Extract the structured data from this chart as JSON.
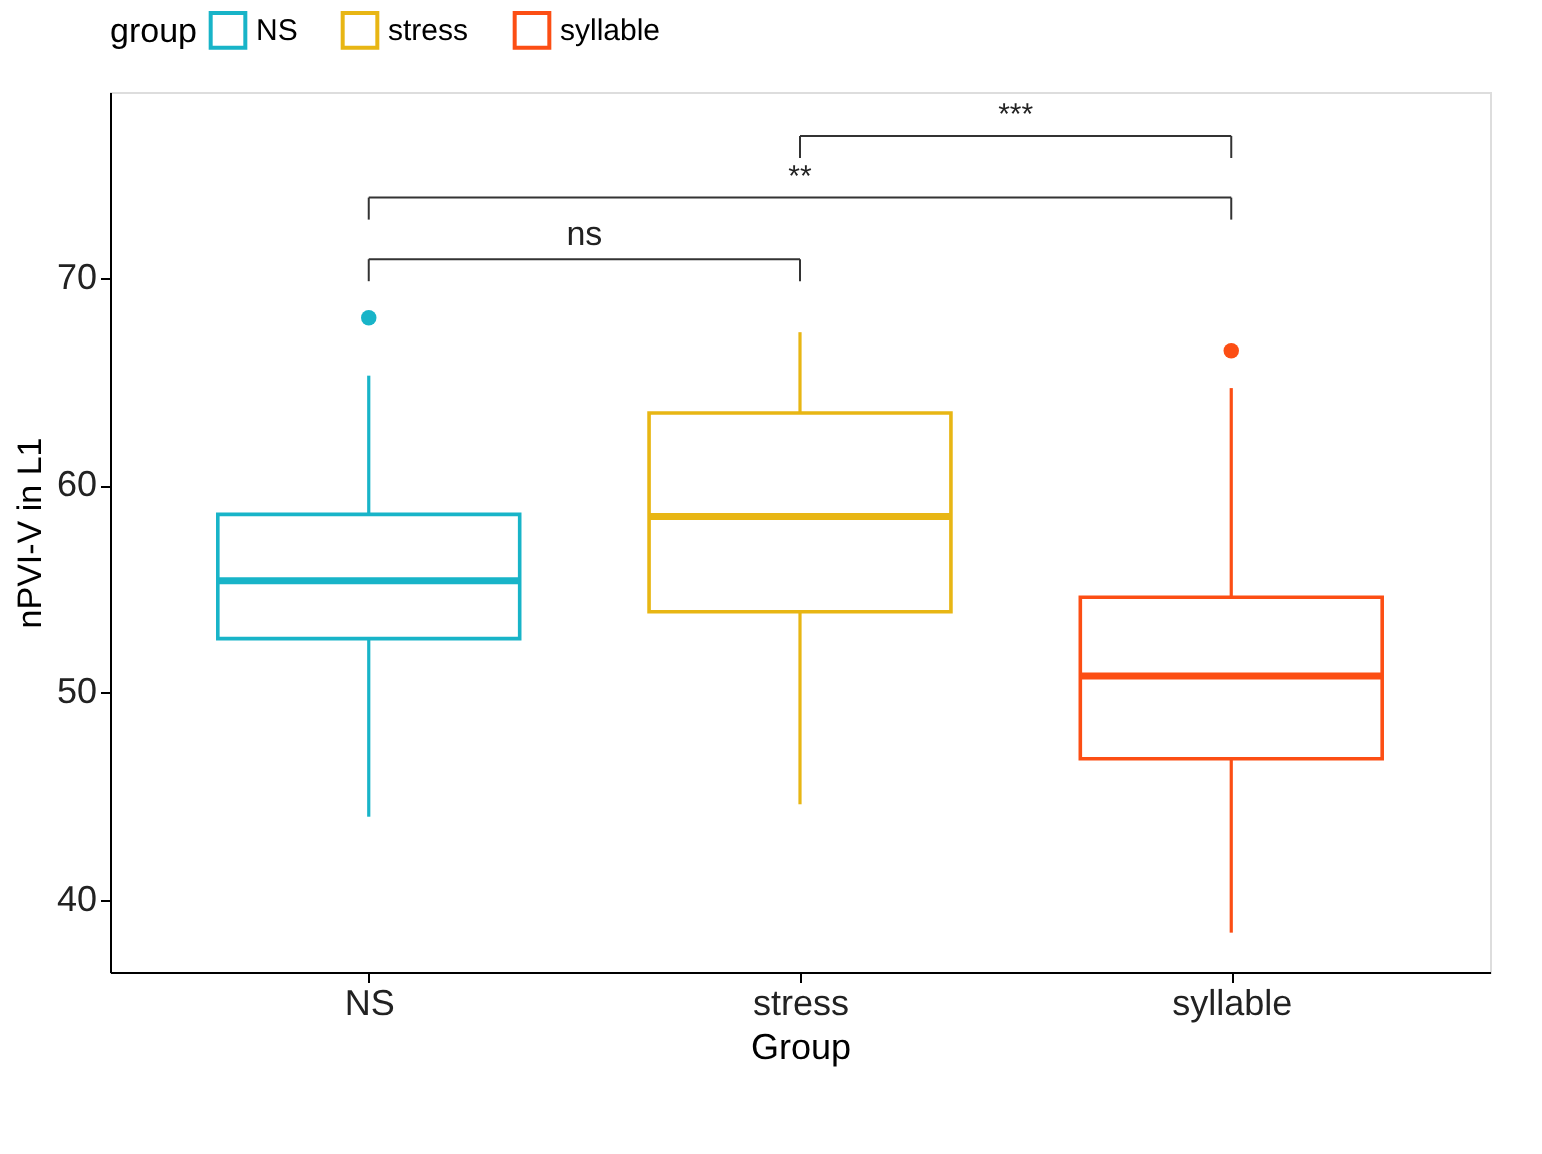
{
  "chart_data": {
    "type": "box",
    "categories": [
      "NS",
      "stress",
      "syllable"
    ],
    "series": [
      {
        "name": "NS",
        "color": "#18b4c8",
        "boxes": [
          {
            "low": 44.0,
            "q1": 52.6,
            "median": 55.4,
            "q3": 58.6,
            "high": 65.3,
            "outliers": [
              68.1
            ]
          },
          null,
          null
        ]
      },
      {
        "name": "stress",
        "color": "#e8b614",
        "boxes": [
          null,
          {
            "low": 44.6,
            "q1": 53.9,
            "median": 58.5,
            "q3": 63.5,
            "high": 67.4
          },
          null
        ]
      },
      {
        "name": "syllable",
        "color": "#fc4e14",
        "boxes": [
          null,
          null,
          {
            "low": 38.4,
            "q1": 46.8,
            "median": 50.8,
            "q3": 54.6,
            "high": 64.7,
            "outliers": [
              66.5
            ]
          }
        ]
      }
    ],
    "xlabel": "Group",
    "ylabel": "nPVI-V in L1",
    "legend_title": "group",
    "legend": "top",
    "ylim": [
      36.5,
      79
    ],
    "yticks": [
      40,
      50,
      60,
      70
    ],
    "grid": false,
    "annotations": [
      "ns",
      "**",
      "***"
    ]
  }
}
